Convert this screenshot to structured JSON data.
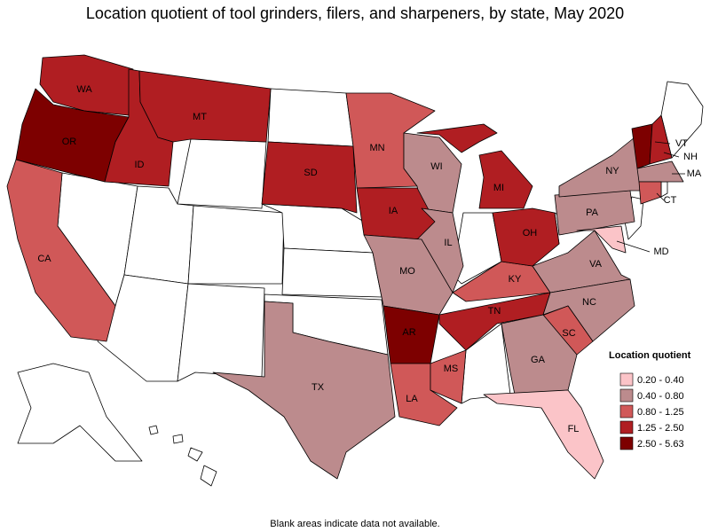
{
  "title": "Location quotient of tool grinders, filers, and sharpeners, by state, May 2020",
  "footnote": "Blank areas indicate data not available.",
  "legend": {
    "title": "Location quotient",
    "items": [
      {
        "label": "0.20 - 0.40",
        "color": "#fbc4c8"
      },
      {
        "label": "0.40 - 0.80",
        "color": "#bc8b8d"
      },
      {
        "label": "0.80 - 1.25",
        "color": "#d05858"
      },
      {
        "label": "1.25 - 2.50",
        "color": "#b01e22"
      },
      {
        "label": "2.50 - 5.63",
        "color": "#7d0000"
      }
    ]
  },
  "states": [
    {
      "abbr": "WA",
      "color": "#b01e22"
    },
    {
      "abbr": "OR",
      "color": "#7d0000"
    },
    {
      "abbr": "CA",
      "color": "#d05858"
    },
    {
      "abbr": "ID",
      "color": "#b01e22"
    },
    {
      "abbr": "MT",
      "color": "#b01e22"
    },
    {
      "abbr": "SD",
      "color": "#b01e22"
    },
    {
      "abbr": "MN",
      "color": "#d05858"
    },
    {
      "abbr": "WI",
      "color": "#bc8b8d"
    },
    {
      "abbr": "IA",
      "color": "#b01e22"
    },
    {
      "abbr": "MI",
      "color": "#b01e22"
    },
    {
      "abbr": "IL",
      "color": "#bc8b8d"
    },
    {
      "abbr": "MO",
      "color": "#bc8b8d"
    },
    {
      "abbr": "AR",
      "color": "#7d0000"
    },
    {
      "abbr": "TX",
      "color": "#bc8b8d"
    },
    {
      "abbr": "LA",
      "color": "#d05858"
    },
    {
      "abbr": "MS",
      "color": "#d05858"
    },
    {
      "abbr": "TN",
      "color": "#b01e22"
    },
    {
      "abbr": "KY",
      "color": "#d05858"
    },
    {
      "abbr": "OH",
      "color": "#b01e22"
    },
    {
      "abbr": "PA",
      "color": "#bc8b8d"
    },
    {
      "abbr": "NY",
      "color": "#bc8b8d"
    },
    {
      "abbr": "VT",
      "color": "#7d0000"
    },
    {
      "abbr": "NH",
      "color": "#b01e22"
    },
    {
      "abbr": "MA",
      "color": "#bc8b8d"
    },
    {
      "abbr": "CT",
      "color": "#d05858"
    },
    {
      "abbr": "MD",
      "color": "#fbc4c8"
    },
    {
      "abbr": "VA",
      "color": "#bc8b8d"
    },
    {
      "abbr": "NC",
      "color": "#bc8b8d"
    },
    {
      "abbr": "SC",
      "color": "#d05858"
    },
    {
      "abbr": "GA",
      "color": "#bc8b8d"
    },
    {
      "abbr": "FL",
      "color": "#fbc4c8"
    }
  ]
}
